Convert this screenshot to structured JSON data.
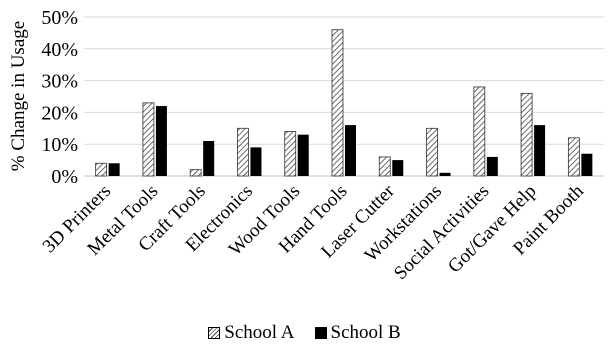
{
  "chart_data": {
    "type": "bar",
    "ylabel": "% Change in Usage",
    "xlabel": "",
    "title": "",
    "ylim": [
      0,
      50
    ],
    "yticks": [
      "0%",
      "10%",
      "20%",
      "30%",
      "40%",
      "50%"
    ],
    "grid": true,
    "legend_position": "bottom",
    "categories": [
      "3D Printers",
      "Metal Tools",
      "Craft Tools",
      "Electronics",
      "Wood Tools",
      "Hand Tools",
      "Laser Cutter",
      "Workstations",
      "Social Activities",
      "Got/Gave Help",
      "Paint Booth"
    ],
    "series": [
      {
        "name": "School A",
        "values": [
          4,
          23,
          2,
          15,
          14,
          46,
          6,
          15,
          28,
          26,
          12
        ],
        "pattern": "hatched"
      },
      {
        "name": "School B",
        "values": [
          4,
          22,
          11,
          9,
          13,
          16,
          5,
          1,
          6,
          16,
          7
        ],
        "pattern": "solid"
      }
    ],
    "colors": {
      "hatch": "#444444",
      "solid": "#000000",
      "grid": "#d9d9d9"
    }
  }
}
